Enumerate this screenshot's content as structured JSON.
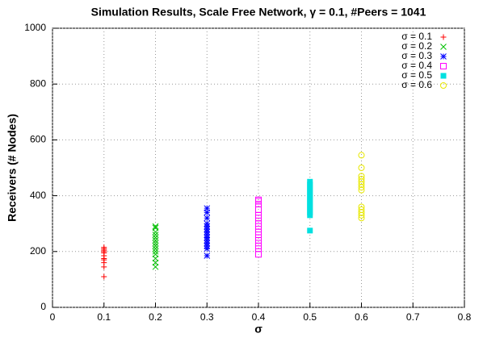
{
  "chart_data": {
    "type": "scatter",
    "title": "Simulation Results, Scale Free Network, γ = 0.1, #Peers = 1041",
    "x_label": "σ",
    "y_label": "Receivers (# Nodes)",
    "xlim": [
      0,
      0.8
    ],
    "ylim": [
      0,
      1000
    ],
    "xticks": [
      0,
      0.1,
      0.2,
      0.3,
      0.4,
      0.5,
      0.6,
      0.7,
      0.8
    ],
    "yticks": [
      0,
      200,
      400,
      600,
      800,
      1000
    ],
    "grid": true,
    "legend": "top-right",
    "series": [
      {
        "name": "σ = 0.1",
        "color": "#ff0000",
        "marker": "plus",
        "x": [
          0.1,
          0.1,
          0.1,
          0.1,
          0.1,
          0.1,
          0.1,
          0.1,
          0.1,
          0.1,
          0.1
        ],
        "values": [
          110,
          145,
          160,
          170,
          175,
          185,
          195,
          200,
          205,
          210,
          215
        ]
      },
      {
        "name": "σ = 0.2",
        "color": "#00c000",
        "marker": "cross",
        "x": [
          0.2,
          0.2,
          0.2,
          0.2,
          0.2,
          0.2,
          0.2,
          0.2,
          0.2,
          0.2,
          0.2,
          0.2,
          0.2,
          0.2
        ],
        "values": [
          145,
          160,
          175,
          190,
          200,
          210,
          220,
          230,
          240,
          250,
          260,
          270,
          285,
          290
        ]
      },
      {
        "name": "σ = 0.3",
        "color": "#0000ff",
        "marker": "star",
        "x": [
          0.3,
          0.3,
          0.3,
          0.3,
          0.3,
          0.3,
          0.3,
          0.3,
          0.3,
          0.3,
          0.3,
          0.3,
          0.3,
          0.3
        ],
        "values": [
          185,
          210,
          220,
          230,
          240,
          250,
          260,
          270,
          280,
          290,
          300,
          320,
          340,
          355
        ]
      },
      {
        "name": "σ = 0.4",
        "color": "#ff00ff",
        "marker": "square",
        "x": [
          0.4,
          0.4,
          0.4,
          0.4,
          0.4,
          0.4,
          0.4,
          0.4,
          0.4,
          0.4,
          0.4,
          0.4,
          0.4,
          0.4,
          0.4
        ],
        "values": [
          190,
          210,
          220,
          240,
          250,
          260,
          270,
          290,
          300,
          320,
          330,
          350,
          370,
          380,
          385
        ]
      },
      {
        "name": "σ = 0.5",
        "color": "#00e0e0",
        "marker": "filled-square",
        "x": [
          0.5,
          0.5,
          0.5,
          0.5,
          0.5,
          0.5,
          0.5,
          0.5,
          0.5,
          0.5,
          0.5,
          0.5,
          0.5,
          0.5
        ],
        "values": [
          275,
          330,
          340,
          350,
          360,
          370,
          380,
          390,
          400,
          410,
          420,
          430,
          440,
          450
        ]
      },
      {
        "name": "σ = 0.6",
        "color": "#e8e800",
        "marker": "circle",
        "x": [
          0.6,
          0.6,
          0.6,
          0.6,
          0.6,
          0.6,
          0.6,
          0.6,
          0.6,
          0.6,
          0.6,
          0.6,
          0.6
        ],
        "values": [
          320,
          330,
          340,
          350,
          360,
          420,
          430,
          440,
          450,
          460,
          470,
          500,
          545
        ]
      }
    ]
  }
}
